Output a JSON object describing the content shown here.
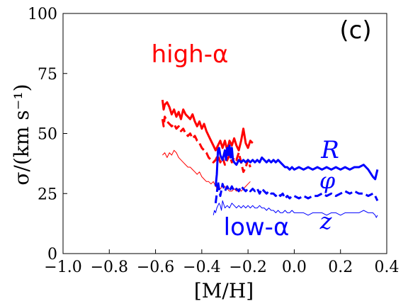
{
  "chart_data": {
    "type": "line",
    "xlabel": "[M/H]",
    "ylabel": "σ/(km s⁻¹)",
    "xlim": [
      -1.0,
      0.4
    ],
    "ylim": [
      0,
      100
    ],
    "xticks": [
      "−1.0",
      "−0.8",
      "−0.6",
      "−0.4",
      "−0.2",
      "0.0",
      "0.2",
      "0.4"
    ],
    "yticks": [
      "0",
      "25",
      "50",
      "75",
      "100"
    ],
    "xtick_values": [
      -1.0,
      -0.8,
      -0.6,
      -0.4,
      -0.2,
      0.0,
      0.2,
      0.4
    ],
    "ytick_values": [
      0,
      25,
      50,
      75,
      100
    ],
    "grid": false,
    "annotations": {
      "panel": "(c)",
      "high_alpha": "high-α",
      "low_alpha": "low-α",
      "R": "R",
      "phi": "φ",
      "z": "z"
    },
    "colors": {
      "high_alpha": "#ff0000",
      "low_alpha": "#0000ff"
    },
    "series": [
      {
        "group": "high-α",
        "component": "R",
        "color": "#ff0000",
        "style": "solid",
        "width": "thick",
        "points": [
          [
            -0.57,
            64
          ],
          [
            -0.565,
            60
          ],
          [
            -0.56,
            62
          ],
          [
            -0.55,
            63
          ],
          [
            -0.54,
            61
          ],
          [
            -0.53,
            58
          ],
          [
            -0.52,
            60
          ],
          [
            -0.51,
            57
          ],
          [
            -0.5,
            59
          ],
          [
            -0.49,
            56
          ],
          [
            -0.48,
            60
          ],
          [
            -0.47,
            58
          ],
          [
            -0.46,
            57
          ],
          [
            -0.45,
            56
          ],
          [
            -0.44,
            58
          ],
          [
            -0.43,
            55
          ],
          [
            -0.42,
            53
          ],
          [
            -0.41,
            55
          ],
          [
            -0.4,
            52
          ],
          [
            -0.39,
            54
          ],
          [
            -0.38,
            51
          ],
          [
            -0.37,
            49
          ],
          [
            -0.36,
            47
          ],
          [
            -0.35,
            45
          ],
          [
            -0.34,
            43
          ],
          [
            -0.33,
            45
          ],
          [
            -0.32,
            47
          ],
          [
            -0.31,
            44
          ],
          [
            -0.3,
            47
          ],
          [
            -0.29,
            43
          ],
          [
            -0.28,
            47
          ],
          [
            -0.27,
            45
          ],
          [
            -0.26,
            48
          ],
          [
            -0.25,
            45
          ],
          [
            -0.24,
            43
          ],
          [
            -0.23,
            47
          ],
          [
            -0.22,
            52
          ],
          [
            -0.21,
            46
          ],
          [
            -0.2,
            44
          ],
          [
            -0.19,
            47
          ],
          [
            -0.18,
            46
          ]
        ]
      },
      {
        "group": "high-α",
        "component": "φ",
        "color": "#ff0000",
        "style": "dashed",
        "width": "thick",
        "points": [
          [
            -0.57,
            56
          ],
          [
            -0.565,
            53
          ],
          [
            -0.56,
            57
          ],
          [
            -0.55,
            55
          ],
          [
            -0.54,
            54
          ],
          [
            -0.53,
            53
          ],
          [
            -0.52,
            54
          ],
          [
            -0.51,
            52
          ],
          [
            -0.5,
            53
          ],
          [
            -0.49,
            51
          ],
          [
            -0.48,
            52
          ],
          [
            -0.47,
            50
          ],
          [
            -0.46,
            49
          ],
          [
            -0.45,
            50
          ],
          [
            -0.44,
            48
          ],
          [
            -0.43,
            49
          ],
          [
            -0.42,
            47
          ],
          [
            -0.41,
            46
          ],
          [
            -0.4,
            44
          ],
          [
            -0.39,
            43
          ],
          [
            -0.38,
            42
          ],
          [
            -0.37,
            40
          ],
          [
            -0.36,
            39
          ],
          [
            -0.35,
            38
          ],
          [
            -0.34,
            39
          ],
          [
            -0.33,
            41
          ],
          [
            -0.32,
            38
          ],
          [
            -0.31,
            40
          ],
          [
            -0.3,
            37
          ],
          [
            -0.29,
            39
          ],
          [
            -0.28,
            41
          ],
          [
            -0.27,
            38
          ],
          [
            -0.26,
            40
          ],
          [
            -0.25,
            39
          ],
          [
            -0.24,
            42
          ],
          [
            -0.23,
            38
          ],
          [
            -0.22,
            34
          ],
          [
            -0.21,
            36
          ],
          [
            -0.2,
            39
          ],
          [
            -0.19,
            36
          ]
        ]
      },
      {
        "group": "high-α",
        "component": "z",
        "color": "#ff0000",
        "style": "solid",
        "width": "thin",
        "points": [
          [
            -0.57,
            41
          ],
          [
            -0.56,
            42
          ],
          [
            -0.55,
            40
          ],
          [
            -0.54,
            42
          ],
          [
            -0.53,
            41
          ],
          [
            -0.52,
            43
          ],
          [
            -0.51,
            42
          ],
          [
            -0.5,
            40
          ],
          [
            -0.49,
            39
          ],
          [
            -0.48,
            38
          ],
          [
            -0.47,
            37
          ],
          [
            -0.46,
            36
          ],
          [
            -0.45,
            36
          ],
          [
            -0.44,
            35
          ],
          [
            -0.43,
            34
          ],
          [
            -0.42,
            33
          ],
          [
            -0.41,
            34
          ],
          [
            -0.4,
            32
          ],
          [
            -0.39,
            31
          ],
          [
            -0.38,
            30
          ],
          [
            -0.37,
            30
          ],
          [
            -0.36,
            29
          ],
          [
            -0.35,
            30
          ],
          [
            -0.34,
            28
          ],
          [
            -0.33,
            27
          ],
          [
            -0.32,
            27
          ],
          [
            -0.31,
            28
          ],
          [
            -0.3,
            28
          ],
          [
            -0.29,
            27
          ],
          [
            -0.28,
            26
          ],
          [
            -0.27,
            26
          ],
          [
            -0.26,
            27
          ],
          [
            -0.25,
            26
          ],
          [
            -0.24,
            27
          ],
          [
            -0.23,
            26
          ],
          [
            -0.22,
            27
          ],
          [
            -0.21,
            28
          ],
          [
            -0.2,
            29
          ],
          [
            -0.19,
            30
          ]
        ]
      },
      {
        "group": "low-α",
        "component": "R",
        "color": "#0000ff",
        "style": "solid",
        "width": "thick",
        "points": [
          [
            -0.34,
            28
          ],
          [
            -0.335,
            33
          ],
          [
            -0.33,
            43
          ],
          [
            -0.325,
            44
          ],
          [
            -0.32,
            41
          ],
          [
            -0.31,
            39
          ],
          [
            -0.3,
            43
          ],
          [
            -0.295,
            39
          ],
          [
            -0.29,
            44
          ],
          [
            -0.285,
            41
          ],
          [
            -0.28,
            45
          ],
          [
            -0.275,
            40
          ],
          [
            -0.27,
            44
          ],
          [
            -0.265,
            39
          ],
          [
            -0.26,
            38
          ],
          [
            -0.25,
            37
          ],
          [
            -0.24,
            39
          ],
          [
            -0.23,
            38
          ],
          [
            -0.22,
            39
          ],
          [
            -0.21,
            38
          ],
          [
            -0.2,
            39
          ],
          [
            -0.19,
            38
          ],
          [
            -0.18,
            39
          ],
          [
            -0.17,
            38
          ],
          [
            -0.16,
            39
          ],
          [
            -0.15,
            38
          ],
          [
            -0.14,
            40
          ],
          [
            -0.13,
            39
          ],
          [
            -0.12,
            38
          ],
          [
            -0.11,
            39
          ],
          [
            -0.1,
            38
          ],
          [
            -0.09,
            39
          ],
          [
            -0.08,
            38
          ],
          [
            -0.07,
            39
          ],
          [
            -0.06,
            38
          ],
          [
            -0.05,
            37
          ],
          [
            -0.04,
            36
          ],
          [
            -0.03,
            36
          ],
          [
            -0.02,
            35
          ],
          [
            -0.01,
            36
          ],
          [
            0.0,
            35
          ],
          [
            0.02,
            36
          ],
          [
            0.04,
            35
          ],
          [
            0.06,
            36
          ],
          [
            0.08,
            35
          ],
          [
            0.1,
            36
          ],
          [
            0.12,
            35
          ],
          [
            0.14,
            36
          ],
          [
            0.16,
            35
          ],
          [
            0.18,
            36
          ],
          [
            0.2,
            35
          ],
          [
            0.22,
            36
          ],
          [
            0.24,
            35
          ],
          [
            0.26,
            36
          ],
          [
            0.28,
            36
          ],
          [
            0.3,
            37
          ],
          [
            0.32,
            35
          ],
          [
            0.34,
            32
          ],
          [
            0.35,
            31
          ],
          [
            0.355,
            33
          ],
          [
            0.36,
            35
          ]
        ]
      },
      {
        "group": "low-α",
        "component": "φ",
        "color": "#0000ff",
        "style": "dashed",
        "width": "thick",
        "points": [
          [
            -0.34,
            21
          ],
          [
            -0.335,
            25
          ],
          [
            -0.33,
            30
          ],
          [
            -0.325,
            27
          ],
          [
            -0.32,
            24
          ],
          [
            -0.31,
            29
          ],
          [
            -0.3,
            26
          ],
          [
            -0.29,
            28
          ],
          [
            -0.28,
            26
          ],
          [
            -0.27,
            28
          ],
          [
            -0.26,
            26
          ],
          [
            -0.25,
            27
          ],
          [
            -0.24,
            26
          ],
          [
            -0.23,
            28
          ],
          [
            -0.22,
            27
          ],
          [
            -0.21,
            26
          ],
          [
            -0.2,
            27
          ],
          [
            -0.19,
            26
          ],
          [
            -0.18,
            27
          ],
          [
            -0.17,
            26
          ],
          [
            -0.16,
            27
          ],
          [
            -0.15,
            25
          ],
          [
            -0.14,
            27
          ],
          [
            -0.13,
            26
          ],
          [
            -0.12,
            25
          ],
          [
            -0.11,
            26
          ],
          [
            -0.1,
            25
          ],
          [
            -0.09,
            25
          ],
          [
            -0.08,
            24
          ],
          [
            -0.07,
            25
          ],
          [
            -0.06,
            24
          ],
          [
            -0.05,
            25
          ],
          [
            -0.04,
            23
          ],
          [
            -0.03,
            24
          ],
          [
            -0.02,
            23
          ],
          [
            -0.01,
            24
          ],
          [
            0.0,
            24
          ],
          [
            0.02,
            23
          ],
          [
            0.04,
            24
          ],
          [
            0.06,
            23
          ],
          [
            0.08,
            24
          ],
          [
            0.1,
            24
          ],
          [
            0.12,
            25
          ],
          [
            0.14,
            24
          ],
          [
            0.16,
            25
          ],
          [
            0.18,
            24
          ],
          [
            0.2,
            25
          ],
          [
            0.22,
            26
          ],
          [
            0.24,
            25
          ],
          [
            0.26,
            26
          ],
          [
            0.28,
            25
          ],
          [
            0.3,
            25
          ],
          [
            0.32,
            24
          ],
          [
            0.34,
            25
          ],
          [
            0.35,
            24
          ],
          [
            0.36,
            22
          ]
        ]
      },
      {
        "group": "low-α",
        "component": "z",
        "color": "#0000ff",
        "style": "solid",
        "width": "thin",
        "points": [
          [
            -0.35,
            16
          ],
          [
            -0.345,
            18
          ],
          [
            -0.34,
            17
          ],
          [
            -0.335,
            19
          ],
          [
            -0.33,
            20
          ],
          [
            -0.325,
            21
          ],
          [
            -0.32,
            20
          ],
          [
            -0.315,
            18
          ],
          [
            -0.31,
            22
          ],
          [
            -0.3,
            19
          ],
          [
            -0.29,
            20
          ],
          [
            -0.28,
            19
          ],
          [
            -0.27,
            21
          ],
          [
            -0.26,
            20
          ],
          [
            -0.25,
            19
          ],
          [
            -0.24,
            20
          ],
          [
            -0.23,
            19
          ],
          [
            -0.22,
            20
          ],
          [
            -0.21,
            19
          ],
          [
            -0.2,
            20
          ],
          [
            -0.19,
            19
          ],
          [
            -0.18,
            20
          ],
          [
            -0.17,
            19
          ],
          [
            -0.16,
            19
          ],
          [
            -0.15,
            20
          ],
          [
            -0.14,
            19
          ],
          [
            -0.13,
            19
          ],
          [
            -0.12,
            18
          ],
          [
            -0.11,
            19
          ],
          [
            -0.1,
            18
          ],
          [
            -0.09,
            18
          ],
          [
            -0.08,
            17
          ],
          [
            -0.07,
            18
          ],
          [
            -0.06,
            17
          ],
          [
            -0.05,
            17
          ],
          [
            -0.04,
            18
          ],
          [
            -0.03,
            17
          ],
          [
            -0.02,
            17
          ],
          [
            -0.01,
            18
          ],
          [
            0.0,
            17
          ],
          [
            0.02,
            17
          ],
          [
            0.04,
            17
          ],
          [
            0.06,
            16
          ],
          [
            0.08,
            17
          ],
          [
            0.1,
            17
          ],
          [
            0.12,
            17
          ],
          [
            0.14,
            16
          ],
          [
            0.16,
            17
          ],
          [
            0.18,
            17
          ],
          [
            0.2,
            16
          ],
          [
            0.22,
            17
          ],
          [
            0.24,
            17
          ],
          [
            0.26,
            17
          ],
          [
            0.28,
            17
          ],
          [
            0.3,
            18
          ],
          [
            0.32,
            17
          ],
          [
            0.34,
            17
          ],
          [
            0.35,
            16
          ],
          [
            0.355,
            15
          ],
          [
            0.36,
            16
          ]
        ]
      }
    ]
  }
}
